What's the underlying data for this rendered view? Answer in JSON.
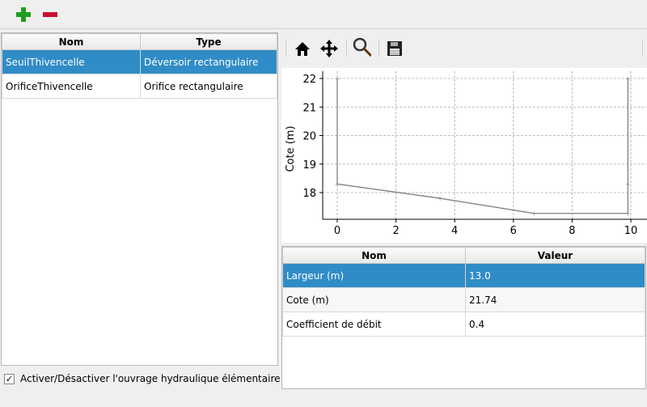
{
  "toolbar": {
    "add_icon": "plus-icon",
    "remove_icon": "minus-icon"
  },
  "structures": {
    "columns": [
      "Nom",
      "Type"
    ],
    "rows": [
      {
        "name": "SeuilThivencelle",
        "type": "Déversoir rectangulaire",
        "selected": true
      },
      {
        "name": "OrificeThivencelle",
        "type": "Orifice rectangulaire",
        "selected": false
      }
    ]
  },
  "toggle": {
    "label": "Activer/Désactiver l'ouvrage hydraulique élémentaire",
    "checked": true
  },
  "plot_toolbar": {
    "icons": [
      "home-icon",
      "pan-icon",
      "zoom-icon",
      "save-icon"
    ]
  },
  "chart_data": {
    "type": "line",
    "ylabel": "Cote (m)",
    "xlabel": "",
    "xlim": [
      -0.5,
      10.5
    ],
    "ylim": [
      17.1,
      22.25
    ],
    "xticks": [
      "0",
      "2",
      "4",
      "6",
      "8",
      "10"
    ],
    "yticks": [
      "18",
      "19",
      "20",
      "21",
      "22"
    ],
    "grid": true,
    "series": [
      {
        "color": "#808080",
        "points": [
          [
            0,
            22
          ],
          [
            0,
            18.3
          ],
          [
            3.5,
            17.8
          ],
          [
            6.7,
            17.27
          ],
          [
            9.9,
            17.27
          ],
          [
            9.9,
            18.3
          ],
          [
            9.9,
            22
          ]
        ]
      }
    ]
  },
  "params": {
    "columns": [
      "Nom",
      "Valeur"
    ],
    "rows": [
      {
        "name": "Largeur (m)",
        "value": "13.0",
        "selected": true
      },
      {
        "name": "Cote (m)",
        "value": "21.74",
        "selected": false
      },
      {
        "name": "Coefficient de débit",
        "value": "0.4",
        "selected": false
      }
    ]
  }
}
